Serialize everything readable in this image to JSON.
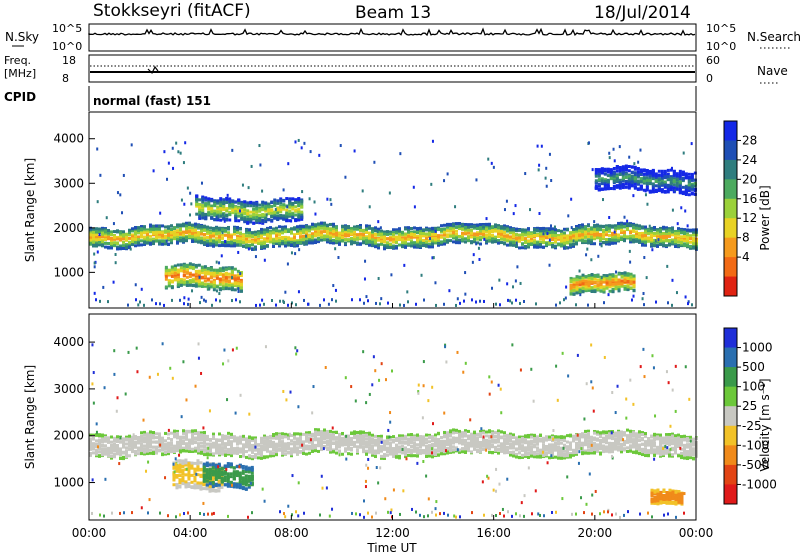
{
  "header": {
    "station": "Stokkseyri (fitACF)",
    "beam": "Beam 13",
    "date": "18/Jul/2014"
  },
  "top_panels": {
    "nsky_label": "N.Sky",
    "nsky_ticks": [
      "10^5",
      "10^0"
    ],
    "nsearch_label": "N.Search",
    "nsearch_ticks": [
      "10^5",
      "10^0"
    ],
    "freq_label": "Freq.",
    "freq_unit": "[MHz]",
    "freq_ticks": [
      "18",
      "8"
    ],
    "nave_label": "Nave",
    "nave_ticks": [
      "60",
      "0"
    ],
    "cpid_label": "CPID",
    "cpid_value": "normal (fast) 151"
  },
  "colorbars": {
    "power": {
      "label": "Power [dB]",
      "ticks": [
        "28",
        "24",
        "20",
        "16",
        "12",
        "8",
        "4"
      ],
      "colors": [
        "#1428e6",
        "#1f4fb5",
        "#2f7d7e",
        "#4caa5f",
        "#9bd13a",
        "#e8d224",
        "#f59a1d",
        "#f26a15",
        "#e02312"
      ]
    },
    "velocity": {
      "label": "Velocity [m s⁻¹]",
      "ticks": [
        "1000",
        "500",
        "100",
        "25",
        "-25",
        "-100",
        "-500",
        "-1000"
      ],
      "colors": [
        "#1f2fd8",
        "#2a6fb0",
        "#3a9a4a",
        "#6cc83a",
        "#c8c8c2",
        "#f2c228",
        "#f08a1a",
        "#e24414",
        "#e01a1a"
      ]
    }
  },
  "chart_data": [
    {
      "type": "heatmap",
      "panel": "power",
      "ylabel": "Slant Range [km]",
      "yticks": [
        "4000",
        "3000",
        "2000",
        "1000"
      ],
      "xticks": [
        "00:00",
        "04:00",
        "08:00",
        "12:00",
        "16:00",
        "20:00",
        "00:00"
      ],
      "ylim": [
        200,
        4600
      ],
      "grid": false,
      "bands": [
        {
          "name": "main",
          "x": [
            0,
            24
          ],
          "y_center": 1850,
          "y_half": 220,
          "level": 6
        },
        {
          "name": "upper-morning",
          "x": [
            4.2,
            8.4
          ],
          "y_center": 2450,
          "y_half": 250,
          "level": 5
        },
        {
          "name": "low-morning",
          "x": [
            3.0,
            6.0
          ],
          "y_center": 900,
          "y_half": 250,
          "level": 7
        },
        {
          "name": "low-evening",
          "x": [
            19.0,
            21.5
          ],
          "y_center": 750,
          "y_half": 200,
          "level": 7
        },
        {
          "name": "high-late",
          "x": [
            20.0,
            24.0
          ],
          "y_center": 3100,
          "y_half": 250,
          "level": 3
        }
      ]
    },
    {
      "type": "heatmap",
      "panel": "velocity",
      "ylabel": "Slant Range [km]",
      "xlabel": "Time UT",
      "yticks": [
        "4000",
        "3000",
        "2000",
        "1000"
      ],
      "xticks": [
        "00:00",
        "04:00",
        "08:00",
        "12:00",
        "16:00",
        "20:00",
        "00:00"
      ],
      "ylim": [
        200,
        4600
      ],
      "grid": false,
      "bands": [
        {
          "name": "main-grey",
          "x": [
            0,
            24
          ],
          "y_center": 1850,
          "y_half": 240,
          "level": "ground"
        },
        {
          "name": "orange-patch",
          "x": [
            3.3,
            5.2
          ],
          "y_center": 1150,
          "y_half": 300,
          "level": "-100"
        },
        {
          "name": "green-patch",
          "x": [
            4.5,
            6.5
          ],
          "y_center": 1200,
          "y_half": 250,
          "level": "100"
        },
        {
          "name": "orange-late",
          "x": [
            22.2,
            23.4
          ],
          "y_center": 750,
          "y_half": 150,
          "level": "-500"
        }
      ]
    }
  ]
}
